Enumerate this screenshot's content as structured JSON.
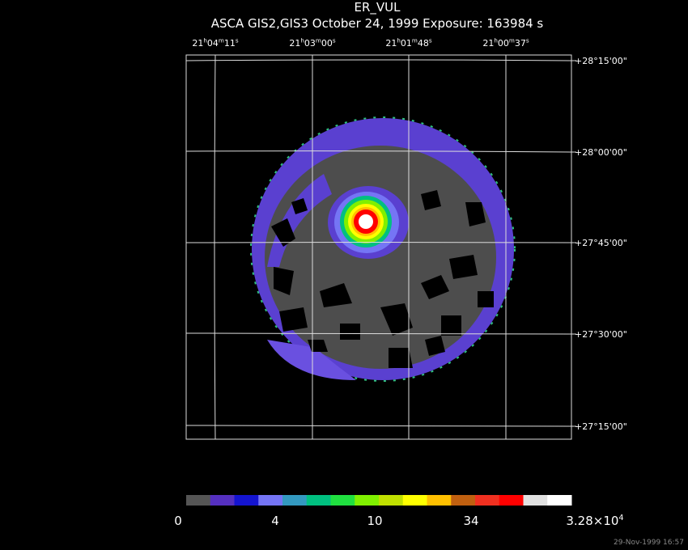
{
  "header": {
    "title": "ER_VUL",
    "subtitle": "ASCA GIS2,GIS3 October 24, 1999 Exposure: 163984 s"
  },
  "ra_labels": [
    [
      "21",
      "h",
      "04",
      "m",
      "11",
      "s"
    ],
    [
      "21",
      "h",
      "03",
      "m",
      "00",
      "s"
    ],
    [
      "21",
      "h",
      "01",
      "m",
      "48",
      "s"
    ],
    [
      "21",
      "h",
      "00",
      "m",
      "37",
      "s"
    ]
  ],
  "dec_labels": [
    "+28°15'00\"",
    "+28°00'00\"",
    "+27°45'00\"",
    "+27°30'00\"",
    "+27°15'00\""
  ],
  "colorbar": {
    "colors": [
      "#555555",
      "#5530c0",
      "#1414d0",
      "#7575f5",
      "#3399c0",
      "#00c080",
      "#20e040",
      "#80f000",
      "#c0e000",
      "#ffff00",
      "#ffc000",
      "#c06010",
      "#f03020",
      "#ff0000",
      "#e0e0e0",
      "#ffffff"
    ],
    "labels": [
      [
        "0"
      ],
      [
        "4"
      ],
      [
        "10"
      ],
      [
        "34"
      ],
      [
        "3.28×10",
        "4"
      ]
    ]
  },
  "timestamp": "29-Nov-1999 16:57"
}
